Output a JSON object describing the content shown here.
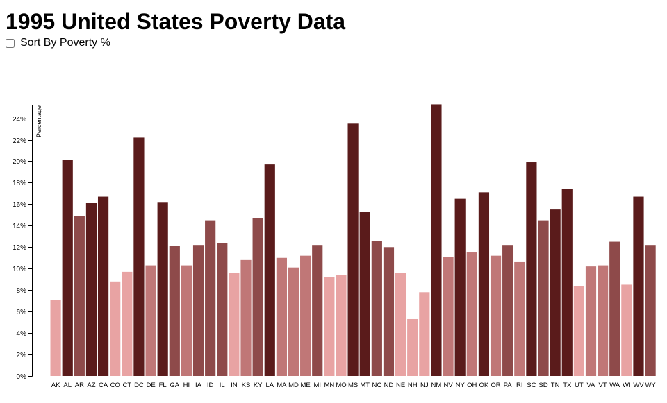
{
  "page": {
    "title": "1995 United States Poverty Data",
    "sort_label": "Sort By Poverty %"
  },
  "colors": {
    "shades": [
      "#e8a3a3",
      "#c07777",
      "#8e4a4a",
      "#5a1b1b"
    ]
  },
  "chart_data": {
    "type": "bar",
    "ylabel": "Percentage",
    "xlabel": "",
    "ylim": [
      0,
      25.2
    ],
    "yticks": [
      0,
      2,
      4,
      6,
      8,
      10,
      12,
      14,
      16,
      18,
      20,
      22,
      24
    ],
    "ytick_labels": [
      "0%",
      "2%",
      "4%",
      "6%",
      "8%",
      "10%",
      "12%",
      "14%",
      "16%",
      "18%",
      "20%",
      "22%",
      "24%"
    ],
    "grid": false,
    "categories": [
      "AK",
      "AL",
      "AR",
      "AZ",
      "CA",
      "CO",
      "CT",
      "DC",
      "DE",
      "FL",
      "GA",
      "HI",
      "IA",
      "ID",
      "IL",
      "IN",
      "KS",
      "KY",
      "LA",
      "MA",
      "MD",
      "ME",
      "MI",
      "MN",
      "MO",
      "MS",
      "MT",
      "NC",
      "ND",
      "NE",
      "NH",
      "NJ",
      "NM",
      "NV",
      "NY",
      "OH",
      "OK",
      "OR",
      "PA",
      "RI",
      "SC",
      "SD",
      "TN",
      "TX",
      "UT",
      "VA",
      "VT",
      "WA",
      "WI",
      "WV",
      "WY"
    ],
    "values": [
      7.1,
      20.1,
      14.9,
      16.1,
      16.7,
      8.8,
      9.7,
      22.2,
      10.3,
      16.2,
      12.1,
      10.3,
      12.2,
      14.5,
      12.4,
      9.6,
      10.8,
      14.7,
      19.7,
      11.0,
      10.1,
      11.2,
      12.2,
      9.2,
      9.4,
      23.5,
      15.3,
      12.6,
      12.0,
      9.6,
      5.3,
      7.8,
      25.3,
      11.1,
      16.5,
      11.5,
      17.1,
      11.2,
      12.2,
      10.6,
      19.9,
      14.5,
      15.5,
      17.4,
      8.4,
      10.2,
      10.3,
      12.5,
      8.5,
      16.7,
      12.2
    ]
  }
}
